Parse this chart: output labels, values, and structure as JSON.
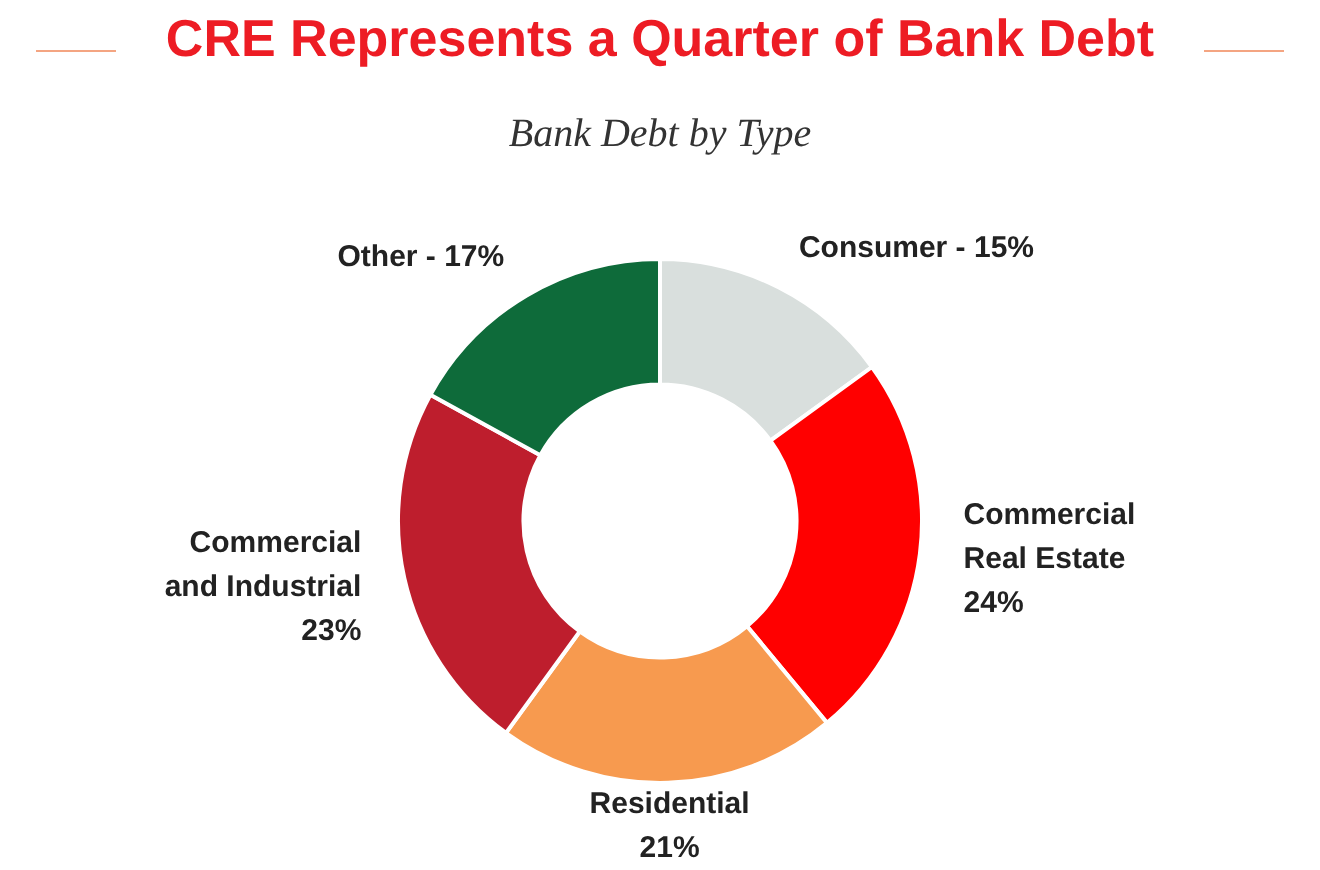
{
  "chart_data": {
    "type": "donut",
    "title": "CRE Represents a Quarter of Bank Debt",
    "subtitle": "Bank Debt by Type",
    "categories": [
      "Consumer - 15%",
      "Commercial\nReal Estate\n24%",
      "Residential\n21%",
      "Commercial\nand Industrial\n23%",
      "Other - 17%"
    ],
    "values": [
      15,
      24,
      21,
      23,
      17
    ],
    "colors": [
      "#d9dfdd",
      "#ff0000",
      "#f79a4f",
      "#be1e2d",
      "#0e6b3a"
    ],
    "legend": false
  }
}
